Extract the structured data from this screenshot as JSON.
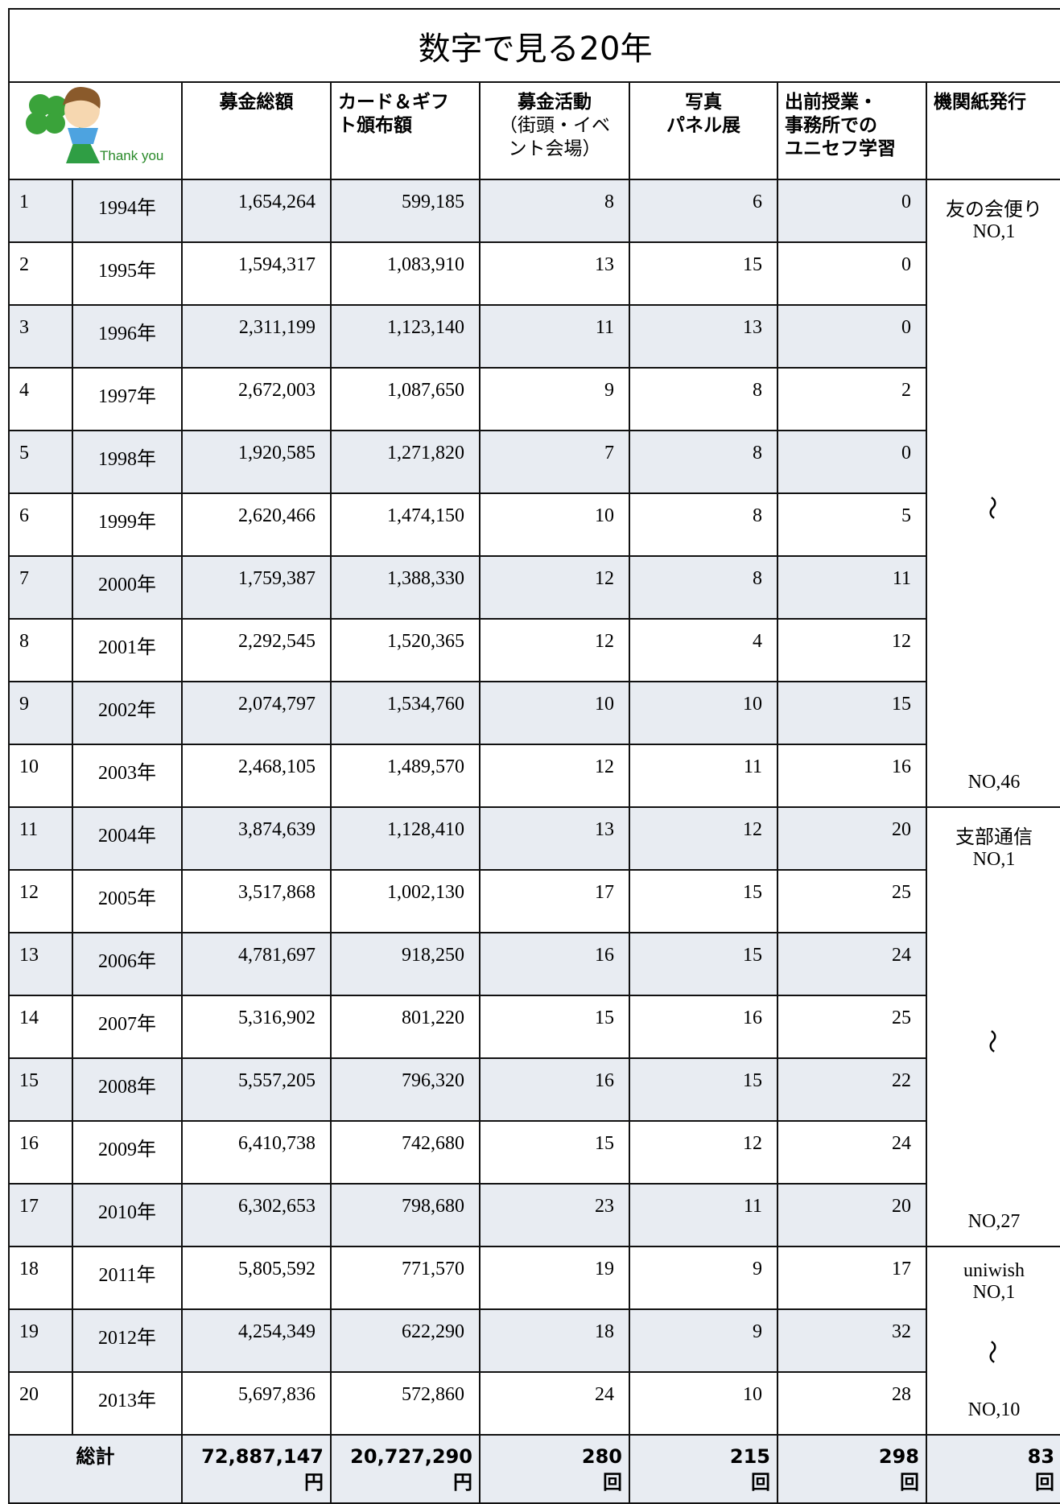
{
  "title": "数字で見る20年",
  "header": {
    "image_text": "Thank you",
    "columns": [
      [
        "募金総額"
      ],
      [
        "カード＆ギフ",
        "ト頒布額"
      ],
      [
        "募金活動",
        "（街頭・イベ",
        "ント会場）"
      ],
      [
        "写真",
        "パネル展"
      ],
      [
        "出前授業・",
        "事務所での",
        "ユニセフ学習"
      ],
      [
        "機関紙発行"
      ]
    ]
  },
  "rows": [
    [
      "1",
      "1994年",
      "1,654,264",
      "599,185",
      "8",
      "6",
      "0"
    ],
    [
      "2",
      "1995年",
      "1,594,317",
      "1,083,910",
      "13",
      "15",
      "0"
    ],
    [
      "3",
      "1996年",
      "2,311,199",
      "1,123,140",
      "11",
      "13",
      "0"
    ],
    [
      "4",
      "1997年",
      "2,672,003",
      "1,087,650",
      "9",
      "8",
      "2"
    ],
    [
      "5",
      "1998年",
      "1,920,585",
      "1,271,820",
      "7",
      "8",
      "0"
    ],
    [
      "6",
      "1999年",
      "2,620,466",
      "1,474,150",
      "10",
      "8",
      "5"
    ],
    [
      "7",
      "2000年",
      "1,759,387",
      "1,388,330",
      "12",
      "8",
      "11"
    ],
    [
      "8",
      "2001年",
      "2,292,545",
      "1,520,365",
      "12",
      "4",
      "12"
    ],
    [
      "9",
      "2002年",
      "2,074,797",
      "1,534,760",
      "10",
      "10",
      "15"
    ],
    [
      "10",
      "2003年",
      "2,468,105",
      "1,489,570",
      "12",
      "11",
      "16"
    ],
    [
      "11",
      "2004年",
      "3,874,639",
      "1,128,410",
      "13",
      "12",
      "20"
    ],
    [
      "12",
      "2005年",
      "3,517,868",
      "1,002,130",
      "17",
      "15",
      "25"
    ],
    [
      "13",
      "2006年",
      "4,781,697",
      "918,250",
      "16",
      "15",
      "24"
    ],
    [
      "14",
      "2007年",
      "5,316,902",
      "801,220",
      "15",
      "16",
      "25"
    ],
    [
      "15",
      "2008年",
      "5,557,205",
      "796,320",
      "16",
      "15",
      "22"
    ],
    [
      "16",
      "2009年",
      "6,410,738",
      "742,680",
      "15",
      "12",
      "24"
    ],
    [
      "17",
      "2010年",
      "6,302,653",
      "798,680",
      "23",
      "11",
      "20"
    ],
    [
      "18",
      "2011年",
      "5,805,592",
      "771,570",
      "19",
      "9",
      "17"
    ],
    [
      "19",
      "2012年",
      "4,254,349",
      "622,290",
      "18",
      "9",
      "32"
    ],
    [
      "20",
      "2013年",
      "5,697,836",
      "572,860",
      "24",
      "10",
      "28"
    ]
  ],
  "newsletters": [
    {
      "name": "友の会便り",
      "first": "NO,1",
      "range_mark": "〜",
      "last": "NO,46"
    },
    {
      "name": "支部通信",
      "first": "NO,1",
      "range_mark": "〜",
      "last": "NO,27"
    },
    {
      "name": "uniwish",
      "first": "NO,1",
      "range_mark": "〜",
      "last": "NO,10"
    }
  ],
  "totals": {
    "label": "総計",
    "values": [
      {
        "amount": "72,887,147",
        "unit": "円"
      },
      {
        "amount": "20,727,290",
        "unit": "円"
      },
      {
        "amount": "280",
        "unit": "回"
      },
      {
        "amount": "215",
        "unit": "回"
      },
      {
        "amount": "298",
        "unit": "回"
      },
      {
        "amount": "83",
        "unit": "回"
      }
    ]
  }
}
